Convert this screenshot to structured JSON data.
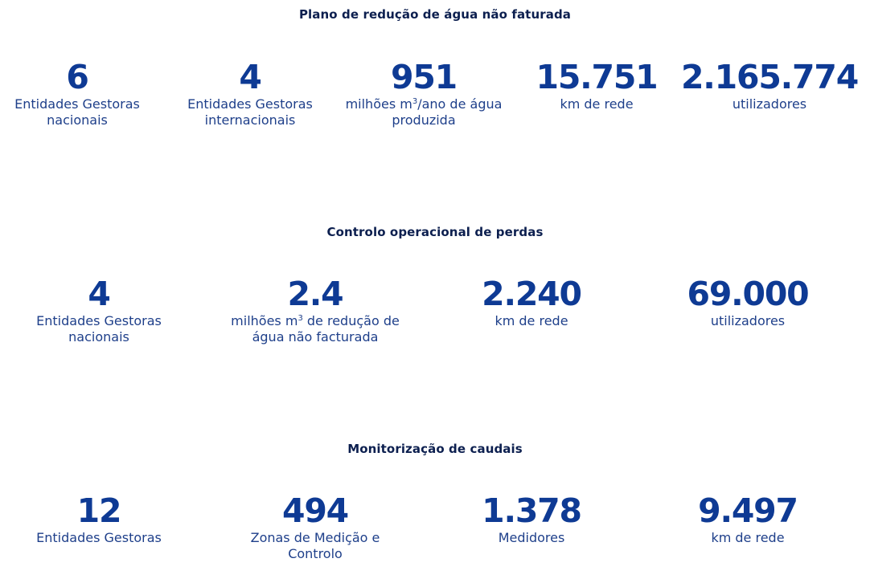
{
  "sections": [
    {
      "title": "Plano de redução de água não faturada",
      "stats": [
        {
          "value": "6",
          "label": [
            "Entidades Gestoras",
            "nacionais"
          ]
        },
        {
          "value": "4",
          "label": [
            "Entidades Gestoras",
            "internacionais"
          ]
        },
        {
          "value": "951",
          "label_pre": "milhões m",
          "label_sup": "3",
          "label_post": "/ano de água",
          "label_line2": "produzida"
        },
        {
          "value": "15.751",
          "label": [
            "km de rede"
          ]
        },
        {
          "value": "2.165.774",
          "label": [
            "utilizadores"
          ]
        }
      ]
    },
    {
      "title": "Controlo operacional de perdas",
      "stats": [
        {
          "value": "4",
          "label": [
            "Entidades Gestoras",
            "nacionais"
          ]
        },
        {
          "value": "2.4",
          "label_pre": "milhões m",
          "label_sup": "3",
          "label_post": " de redução de",
          "label_line2": "água não facturada"
        },
        {
          "value": "2.240",
          "label": [
            "km de rede"
          ]
        },
        {
          "value": "69.000",
          "label": [
            "utilizadores"
          ]
        }
      ]
    },
    {
      "title": "Monitorização de caudais",
      "stats": [
        {
          "value": "12",
          "label": [
            "Entidades Gestoras"
          ]
        },
        {
          "value": "494",
          "label": [
            "Zonas de Medição e",
            "Controlo"
          ]
        },
        {
          "value": "1.378",
          "label": [
            "Medidores"
          ]
        },
        {
          "value": "9.497",
          "label": [
            "km de rede"
          ]
        }
      ]
    }
  ]
}
